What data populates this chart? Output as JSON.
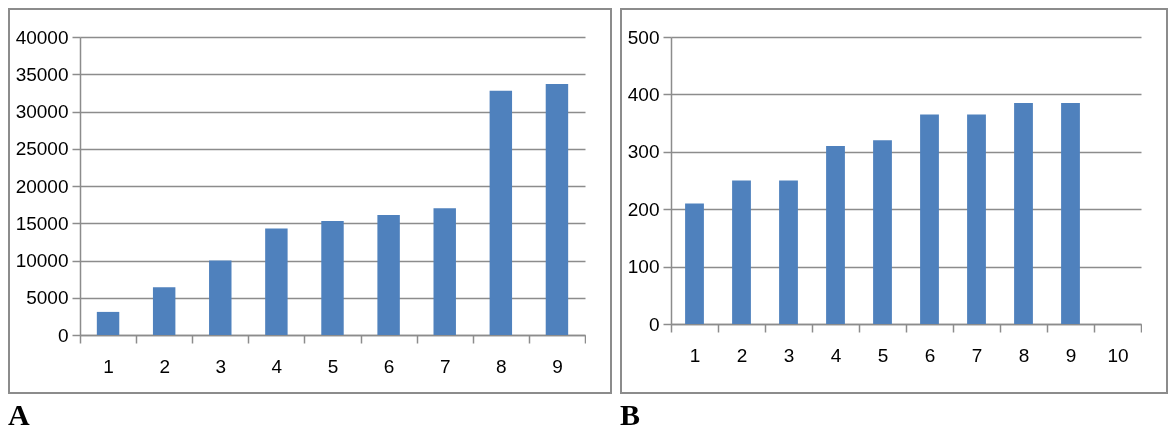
{
  "chart_data": [
    {
      "type": "bar",
      "categories": [
        "1",
        "2",
        "3",
        "4",
        "5",
        "6",
        "7",
        "8",
        "9"
      ],
      "values": [
        3100,
        6400,
        10000,
        14300,
        15300,
        16100,
        17000,
        32800,
        33700
      ],
      "color": "#4f81bd",
      "ylim": [
        0,
        40000
      ],
      "yticks": [
        0,
        5000,
        10000,
        15000,
        20000,
        25000,
        30000,
        35000,
        40000
      ],
      "grid": "y",
      "annotations": [
        "A"
      ]
    },
    {
      "type": "bar",
      "categories": [
        "1",
        "2",
        "3",
        "4",
        "5",
        "6",
        "7",
        "8",
        "9",
        "10"
      ],
      "values": [
        210,
        250,
        250,
        310,
        320,
        365,
        365,
        385,
        385,
        null
      ],
      "color": "#4f81bd",
      "ylim": [
        0,
        500
      ],
      "yticks": [
        0,
        100,
        200,
        300,
        400,
        500
      ],
      "grid": "y",
      "annotations": [
        "B"
      ]
    }
  ]
}
